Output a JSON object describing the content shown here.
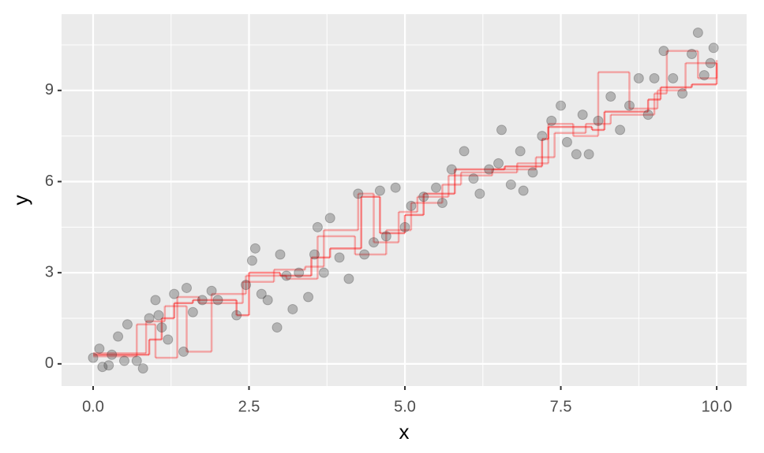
{
  "chart_data": {
    "type": "scatter",
    "x_label": "x",
    "y_label": "y",
    "xlim": [
      -0.506,
      10.48
    ],
    "ylim": [
      -0.73,
      11.51
    ],
    "xticks": [
      {
        "value": 0,
        "label": "0.0"
      },
      2.5,
      {
        "value": 5,
        "label": "5.0"
      },
      7.5,
      {
        "value": 10,
        "label": "10.0"
      }
    ],
    "yticks": [
      0,
      3,
      6,
      9
    ],
    "xminorticks": [
      1.25,
      3.75,
      6.25,
      8.75
    ],
    "yminorticks": [
      1.5,
      4.5,
      7.5,
      10.5
    ],
    "grid": true,
    "background": "#ebebeb",
    "series": [
      {
        "type": "scatter",
        "color": "#333333",
        "opacity": 0.3,
        "x": [
          0.0,
          0.1,
          0.15,
          0.25,
          0.3,
          0.4,
          0.5,
          0.55,
          0.7,
          0.8,
          0.9,
          1.0,
          1.05,
          1.1,
          1.2,
          1.3,
          1.45,
          1.5,
          1.6,
          1.75,
          1.9,
          2.0,
          2.3,
          2.45,
          2.55,
          2.6,
          2.7,
          2.8,
          2.95,
          3.0,
          3.1,
          3.2,
          3.3,
          3.45,
          3.55,
          3.6,
          3.7,
          3.8,
          3.95,
          4.1,
          4.25,
          4.35,
          4.5,
          4.6,
          4.7,
          4.85,
          5.0,
          5.1,
          5.3,
          5.5,
          5.6,
          5.75,
          5.95,
          6.1,
          6.2,
          6.35,
          6.5,
          6.55,
          6.7,
          6.85,
          6.9,
          7.05,
          7.2,
          7.35,
          7.5,
          7.6,
          7.75,
          7.85,
          7.95,
          8.1,
          8.3,
          8.45,
          8.6,
          8.75,
          8.9,
          9.0,
          9.15,
          9.3,
          9.45,
          9.6,
          9.7,
          9.8,
          9.9,
          9.95
        ],
        "values": [
          0.2,
          0.5,
          -0.1,
          -0.05,
          0.3,
          0.9,
          0.1,
          1.3,
          0.1,
          -0.15,
          1.5,
          2.1,
          1.6,
          1.2,
          0.8,
          2.3,
          0.4,
          2.5,
          1.7,
          2.1,
          2.4,
          2.1,
          1.6,
          2.6,
          3.4,
          3.8,
          2.3,
          2.1,
          1.2,
          3.6,
          2.9,
          1.8,
          3.0,
          2.2,
          3.6,
          4.5,
          3.0,
          4.8,
          3.5,
          2.8,
          5.6,
          3.6,
          4.0,
          5.7,
          4.2,
          5.8,
          4.5,
          5.2,
          5.5,
          5.8,
          5.3,
          6.4,
          7.0,
          6.1,
          5.6,
          6.4,
          6.6,
          7.7,
          5.9,
          7.0,
          5.7,
          6.3,
          7.5,
          8.0,
          8.5,
          7.3,
          6.9,
          8.2,
          6.9,
          8.0,
          8.8,
          7.7,
          8.5,
          9.4,
          8.2,
          9.4,
          10.3,
          9.4,
          8.9,
          10.2,
          10.9,
          9.5,
          9.9,
          10.4
        ]
      },
      {
        "type": "step",
        "color": "#ff0000",
        "opacity": 0.45,
        "x": [
          0,
          0.6,
          0.9,
          1.1,
          1.3,
          1.6,
          2.3,
          2.5,
          3.0,
          3.5,
          3.8,
          4.3,
          4.6,
          5.0,
          5.3,
          5.8,
          6.6,
          7.2,
          7.3,
          8.0,
          8.2,
          8.9,
          9.1,
          9.6,
          10
        ],
        "values": [
          0.3,
          0.3,
          0.8,
          1.5,
          2.0,
          2.1,
          1.6,
          3.0,
          2.9,
          3.5,
          3.8,
          5.5,
          4.3,
          4.9,
          5.6,
          6.4,
          6.5,
          7.4,
          7.8,
          7.7,
          8.3,
          8.7,
          9.1,
          9.2,
          9.9
        ]
      },
      {
        "type": "step",
        "color": "#ff0000",
        "opacity": 0.3,
        "x": [
          0,
          0.7,
          1.0,
          1.35,
          1.7,
          2.4,
          2.9,
          3.4,
          3.7,
          4.25,
          4.5,
          4.9,
          5.2,
          5.7,
          6.4,
          7.1,
          7.4,
          7.9,
          8.3,
          9.0,
          9.2,
          9.7,
          10
        ],
        "values": [
          0.25,
          1.3,
          0.2,
          2.2,
          2.0,
          2.7,
          3.1,
          3.2,
          4.4,
          5.6,
          4.0,
          5.0,
          5.5,
          6.2,
          6.4,
          6.8,
          7.6,
          7.9,
          8.2,
          8.9,
          10.3,
          9.4,
          9.9
        ]
      },
      {
        "type": "step",
        "color": "#ff0000",
        "opacity": 0.3,
        "x": [
          0,
          0.85,
          1.15,
          1.5,
          1.9,
          2.45,
          3.1,
          3.6,
          4.2,
          4.7,
          5.1,
          5.6,
          5.9,
          6.8,
          7.3,
          7.7,
          8.1,
          8.6,
          9.05,
          9.5,
          10
        ],
        "values": [
          0.35,
          1.4,
          1.9,
          0.4,
          2.3,
          2.9,
          2.8,
          4.2,
          3.6,
          4.4,
          5.3,
          5.9,
          6.3,
          6.6,
          7.9,
          7.5,
          9.6,
          8.4,
          9.0,
          9.9,
          10.0
        ]
      }
    ]
  }
}
